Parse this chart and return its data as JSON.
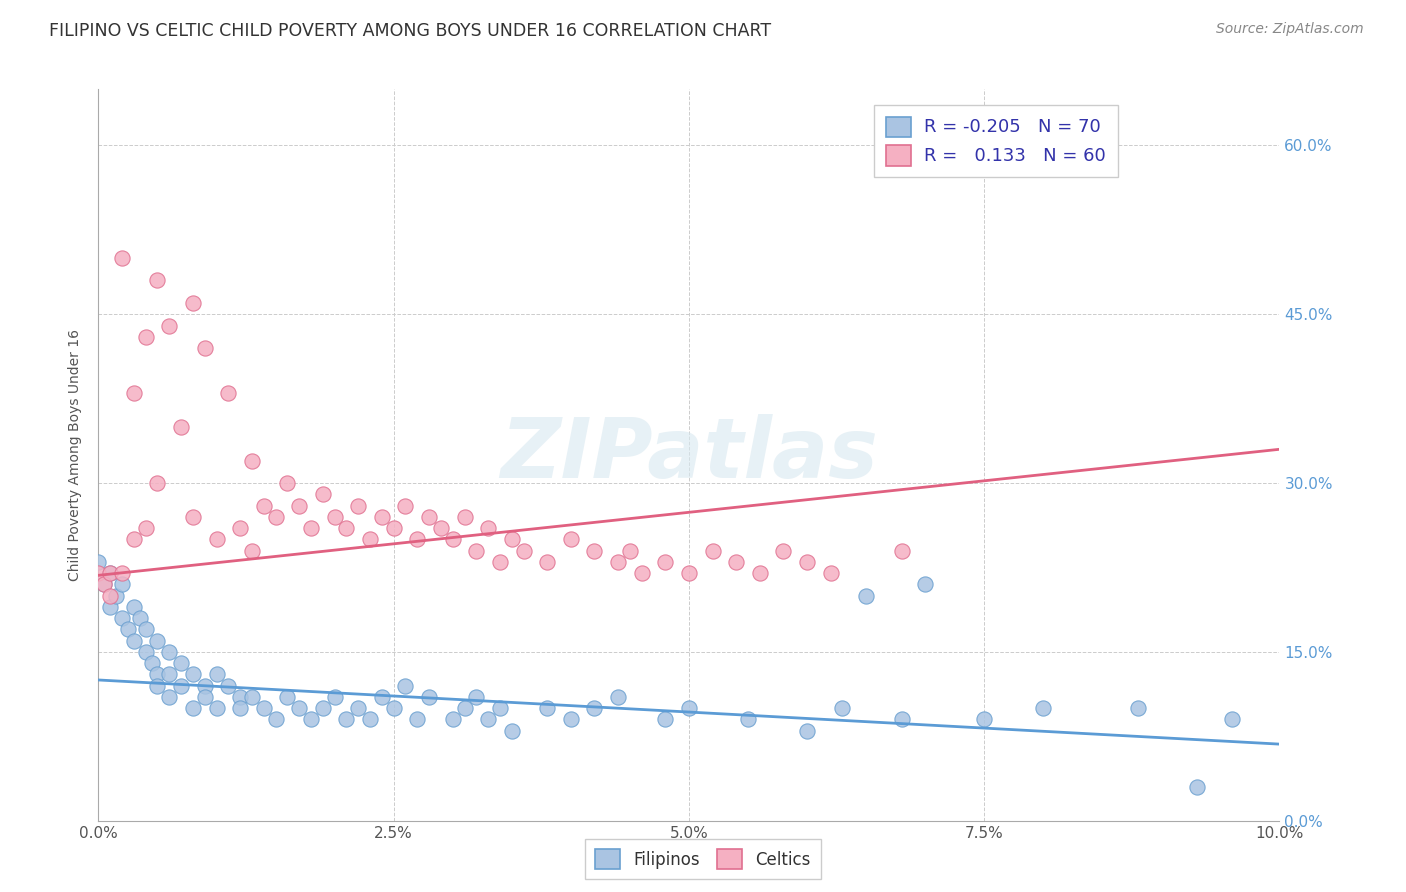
{
  "title": "FILIPINO VS CELTIC CHILD POVERTY AMONG BOYS UNDER 16 CORRELATION CHART",
  "source": "Source: ZipAtlas.com",
  "ylabel_label": "Child Poverty Among Boys Under 16",
  "xlim": [
    0.0,
    0.1
  ],
  "ylim": [
    0.0,
    0.65
  ],
  "filipino_color": "#aac4e2",
  "filipino_edge_color": "#6aa0d0",
  "celtic_color": "#f5b0c2",
  "celtic_edge_color": "#e07090",
  "filipino_line_color": "#5b9bd5",
  "celtic_line_color": "#e06080",
  "legend_R1": "-0.205",
  "legend_N1": "70",
  "legend_R2": "0.133",
  "legend_N2": "60",
  "watermark": "ZIPatlas",
  "legend_text_color": "#3333aa",
  "right_axis_color": "#5b9bd5",
  "filipino_trend_x": [
    0.0,
    0.1
  ],
  "filipino_trend_y": [
    0.125,
    0.068
  ],
  "celtic_trend_x": [
    0.0,
    0.1
  ],
  "celtic_trend_y": [
    0.218,
    0.33
  ],
  "fil_x": [
    0.0,
    0.0005,
    0.001,
    0.001,
    0.0015,
    0.002,
    0.002,
    0.0025,
    0.003,
    0.003,
    0.0035,
    0.004,
    0.004,
    0.0045,
    0.005,
    0.005,
    0.005,
    0.006,
    0.006,
    0.006,
    0.007,
    0.007,
    0.008,
    0.008,
    0.009,
    0.009,
    0.01,
    0.01,
    0.011,
    0.012,
    0.012,
    0.013,
    0.014,
    0.015,
    0.016,
    0.017,
    0.018,
    0.019,
    0.02,
    0.021,
    0.022,
    0.023,
    0.024,
    0.025,
    0.026,
    0.027,
    0.028,
    0.03,
    0.031,
    0.032,
    0.033,
    0.034,
    0.035,
    0.038,
    0.04,
    0.042,
    0.044,
    0.048,
    0.05,
    0.055,
    0.06,
    0.063,
    0.065,
    0.068,
    0.07,
    0.075,
    0.08,
    0.088,
    0.093,
    0.096
  ],
  "fil_y": [
    0.23,
    0.21,
    0.19,
    0.22,
    0.2,
    0.18,
    0.21,
    0.17,
    0.19,
    0.16,
    0.18,
    0.15,
    0.17,
    0.14,
    0.16,
    0.13,
    0.12,
    0.15,
    0.13,
    0.11,
    0.14,
    0.12,
    0.13,
    0.1,
    0.12,
    0.11,
    0.13,
    0.1,
    0.12,
    0.11,
    0.1,
    0.11,
    0.1,
    0.09,
    0.11,
    0.1,
    0.09,
    0.1,
    0.11,
    0.09,
    0.1,
    0.09,
    0.11,
    0.1,
    0.12,
    0.09,
    0.11,
    0.09,
    0.1,
    0.11,
    0.09,
    0.1,
    0.08,
    0.1,
    0.09,
    0.1,
    0.11,
    0.09,
    0.1,
    0.09,
    0.08,
    0.1,
    0.2,
    0.09,
    0.21,
    0.09,
    0.1,
    0.1,
    0.03,
    0.09
  ],
  "cel_x": [
    0.0,
    0.0005,
    0.001,
    0.001,
    0.002,
    0.002,
    0.003,
    0.003,
    0.004,
    0.004,
    0.005,
    0.005,
    0.006,
    0.007,
    0.008,
    0.008,
    0.009,
    0.01,
    0.011,
    0.012,
    0.013,
    0.013,
    0.014,
    0.015,
    0.016,
    0.017,
    0.018,
    0.019,
    0.02,
    0.021,
    0.022,
    0.023,
    0.024,
    0.025,
    0.026,
    0.027,
    0.028,
    0.029,
    0.03,
    0.031,
    0.032,
    0.033,
    0.034,
    0.035,
    0.036,
    0.038,
    0.04,
    0.042,
    0.044,
    0.045,
    0.046,
    0.048,
    0.05,
    0.052,
    0.054,
    0.056,
    0.058,
    0.06,
    0.062,
    0.068
  ],
  "cel_y": [
    0.22,
    0.21,
    0.22,
    0.2,
    0.5,
    0.22,
    0.38,
    0.25,
    0.43,
    0.26,
    0.48,
    0.3,
    0.44,
    0.35,
    0.46,
    0.27,
    0.42,
    0.25,
    0.38,
    0.26,
    0.32,
    0.24,
    0.28,
    0.27,
    0.3,
    0.28,
    0.26,
    0.29,
    0.27,
    0.26,
    0.28,
    0.25,
    0.27,
    0.26,
    0.28,
    0.25,
    0.27,
    0.26,
    0.25,
    0.27,
    0.24,
    0.26,
    0.23,
    0.25,
    0.24,
    0.23,
    0.25,
    0.24,
    0.23,
    0.24,
    0.22,
    0.23,
    0.22,
    0.24,
    0.23,
    0.22,
    0.24,
    0.23,
    0.22,
    0.24
  ]
}
